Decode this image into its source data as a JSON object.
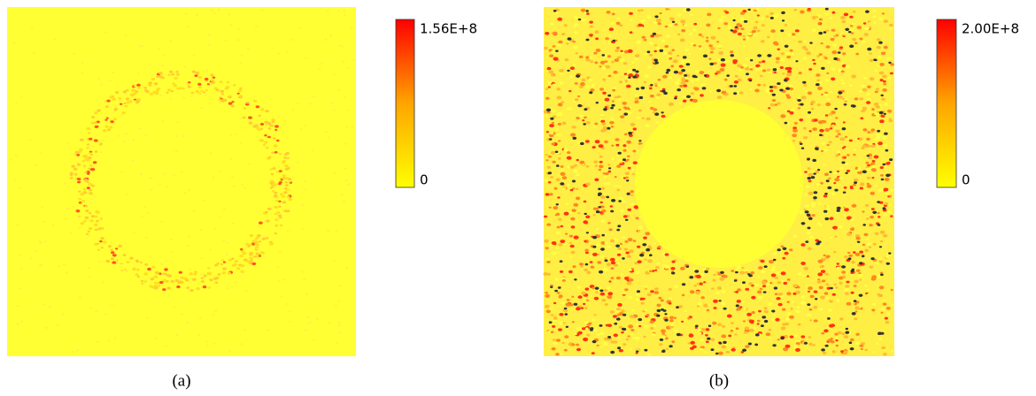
{
  "panels": [
    {
      "caption": "(a)",
      "colorbar": {
        "max_label": "1.56E+8",
        "min_label": "0"
      }
    },
    {
      "caption": "(b)",
      "colorbar": {
        "max_label": "2.00E+8",
        "min_label": "0"
      }
    }
  ]
}
